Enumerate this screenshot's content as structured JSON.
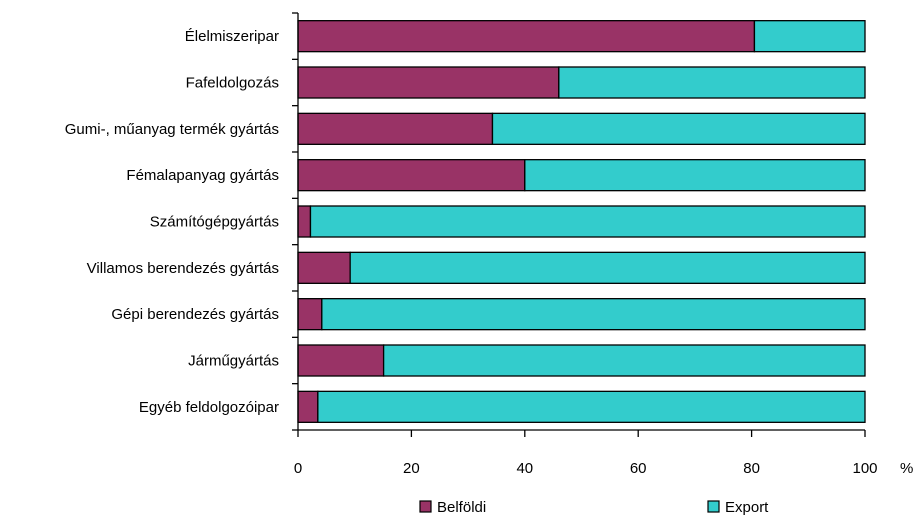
{
  "chart_data": {
    "type": "bar",
    "orientation": "horizontal",
    "stacked": true,
    "categories": [
      "Élelmiszeripar",
      "Fafeldolgozás",
      "Gumi-, műanyag termék gyártás",
      "Fémalapanyag gyártás",
      "Számítógépgyártás",
      "Villamos berendezés gyártás",
      "Gépi berendezés gyártás",
      "Járműgyártás",
      "Egyéb feldolgozóipar"
    ],
    "series": [
      {
        "name": "Belföldi",
        "color": "#993366",
        "values": [
          80.5,
          46,
          34.3,
          40,
          2.2,
          9.2,
          4.2,
          15.1,
          3.5
        ]
      },
      {
        "name": "Export",
        "color": "#33CCCC",
        "values": [
          19.5,
          54,
          65.7,
          60,
          97.8,
          90.8,
          95.8,
          84.9,
          96.5
        ]
      }
    ],
    "xlim": [
      0,
      100
    ],
    "xticks": [
      "0",
      "20",
      "40",
      "60",
      "80",
      "100"
    ],
    "xunit": "%",
    "legend_position": "bottom",
    "grid": false
  }
}
